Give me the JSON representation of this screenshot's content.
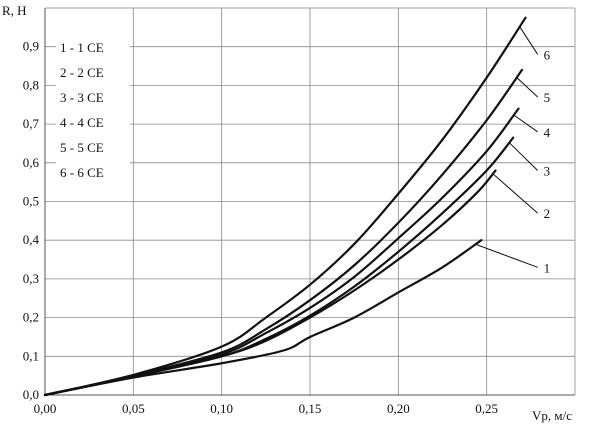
{
  "chart_data": {
    "type": "line",
    "title": "",
    "xlabel": "Vp, м/с",
    "ylabel": "R, Н",
    "xlim": [
      0,
      0.3
    ],
    "ylim": [
      0,
      1.0
    ],
    "grid": true,
    "x_ticks": [
      {
        "value": 0.0,
        "label": "0,00"
      },
      {
        "value": 0.05,
        "label": "0,05"
      },
      {
        "value": 0.1,
        "label": "0,10"
      },
      {
        "value": 0.15,
        "label": "0,15"
      },
      {
        "value": 0.2,
        "label": "0,20"
      },
      {
        "value": 0.25,
        "label": "0,25"
      }
    ],
    "y_ticks": [
      {
        "value": 0.0,
        "label": "0,0"
      },
      {
        "value": 0.1,
        "label": "0,1"
      },
      {
        "value": 0.2,
        "label": "0,2"
      },
      {
        "value": 0.3,
        "label": "0,3"
      },
      {
        "value": 0.4,
        "label": "0,4"
      },
      {
        "value": 0.5,
        "label": "0,5"
      },
      {
        "value": 0.6,
        "label": "0,6"
      },
      {
        "value": 0.7,
        "label": "0,7"
      },
      {
        "value": 0.8,
        "label": "0,8"
      },
      {
        "value": 0.9,
        "label": "0,9"
      }
    ],
    "legend": {
      "placement": "top-left",
      "entries": [
        "1 - 1 СЕ",
        "2 - 2 СЕ",
        "3 - 3 СЕ",
        "4 - 4 СЕ",
        "5 - 5 СЕ",
        "6 - 6 СЕ"
      ]
    },
    "line_color": "#111111",
    "series": [
      {
        "name": "1",
        "points": [
          [
            0,
            0
          ],
          [
            0.05,
            0.045
          ],
          [
            0.1,
            0.082
          ],
          [
            0.135,
            0.115
          ],
          [
            0.15,
            0.15
          ],
          [
            0.175,
            0.2
          ],
          [
            0.2,
            0.265
          ],
          [
            0.225,
            0.33
          ],
          [
            0.247,
            0.4
          ]
        ],
        "label_at": [
          0.28,
          0.33
        ]
      },
      {
        "name": "2",
        "points": [
          [
            0,
            0
          ],
          [
            0.05,
            0.048
          ],
          [
            0.1,
            0.1
          ],
          [
            0.125,
            0.14
          ],
          [
            0.15,
            0.2
          ],
          [
            0.175,
            0.27
          ],
          [
            0.2,
            0.35
          ],
          [
            0.225,
            0.44
          ],
          [
            0.245,
            0.525
          ],
          [
            0.255,
            0.58
          ]
        ],
        "label_at": [
          0.28,
          0.47
        ]
      },
      {
        "name": "3",
        "points": [
          [
            0,
            0
          ],
          [
            0.05,
            0.048
          ],
          [
            0.1,
            0.1
          ],
          [
            0.125,
            0.145
          ],
          [
            0.15,
            0.205
          ],
          [
            0.175,
            0.28
          ],
          [
            0.2,
            0.37
          ],
          [
            0.225,
            0.47
          ],
          [
            0.25,
            0.58
          ],
          [
            0.265,
            0.665
          ]
        ],
        "label_at": [
          0.28,
          0.58
        ]
      },
      {
        "name": "4",
        "points": [
          [
            0,
            0
          ],
          [
            0.05,
            0.048
          ],
          [
            0.1,
            0.105
          ],
          [
            0.125,
            0.16
          ],
          [
            0.15,
            0.225
          ],
          [
            0.175,
            0.305
          ],
          [
            0.2,
            0.405
          ],
          [
            0.225,
            0.51
          ],
          [
            0.25,
            0.63
          ],
          [
            0.268,
            0.74
          ]
        ],
        "label_at": [
          0.28,
          0.68
        ]
      },
      {
        "name": "5",
        "points": [
          [
            0,
            0
          ],
          [
            0.05,
            0.05
          ],
          [
            0.1,
            0.11
          ],
          [
            0.125,
            0.17
          ],
          [
            0.15,
            0.245
          ],
          [
            0.175,
            0.335
          ],
          [
            0.2,
            0.445
          ],
          [
            0.225,
            0.57
          ],
          [
            0.25,
            0.71
          ],
          [
            0.27,
            0.84
          ]
        ],
        "label_at": [
          0.28,
          0.77
        ]
      },
      {
        "name": "6",
        "points": [
          [
            0,
            0
          ],
          [
            0.05,
            0.052
          ],
          [
            0.1,
            0.125
          ],
          [
            0.125,
            0.2
          ],
          [
            0.15,
            0.285
          ],
          [
            0.175,
            0.39
          ],
          [
            0.2,
            0.52
          ],
          [
            0.225,
            0.66
          ],
          [
            0.25,
            0.82
          ],
          [
            0.272,
            0.975
          ]
        ],
        "label_at": [
          0.28,
          0.88
        ]
      }
    ]
  }
}
